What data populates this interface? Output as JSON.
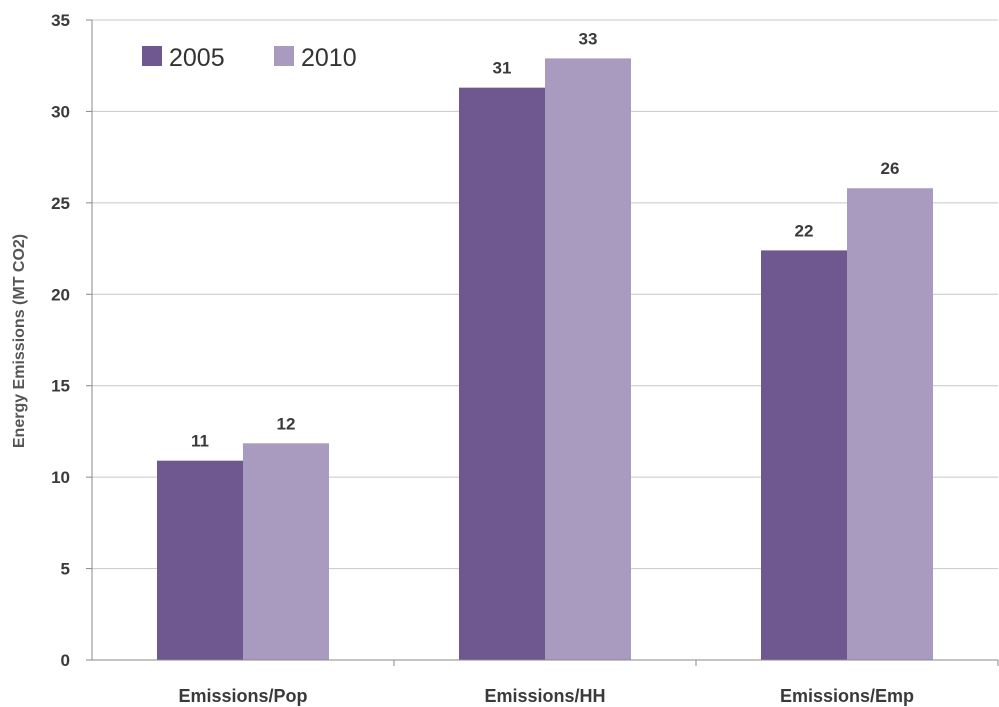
{
  "colors": {
    "series_2005": "#6f5790",
    "series_2010": "#a99bbf",
    "gridline": "#c8c8c8",
    "axis": "#8a8a8a"
  },
  "chart_data": {
    "type": "bar",
    "title": "",
    "xlabel": "",
    "ylabel": "Energy Emissions (MT CO2)",
    "categories": [
      "Emissions/Pop",
      "Emissions/HH",
      "Emissions/Emp"
    ],
    "series": [
      {
        "name": "2005",
        "values": [
          10.9,
          31.3,
          22.4
        ],
        "labels": [
          "11",
          "31",
          "22"
        ]
      },
      {
        "name": "2010",
        "values": [
          11.85,
          32.9,
          25.8
        ],
        "labels": [
          "12",
          "33",
          "26"
        ]
      }
    ],
    "ylim": [
      0,
      35
    ],
    "yticks": [
      "0",
      "5",
      "10",
      "15",
      "20",
      "25",
      "30",
      "35"
    ],
    "grid": true,
    "legend": "top-left"
  }
}
